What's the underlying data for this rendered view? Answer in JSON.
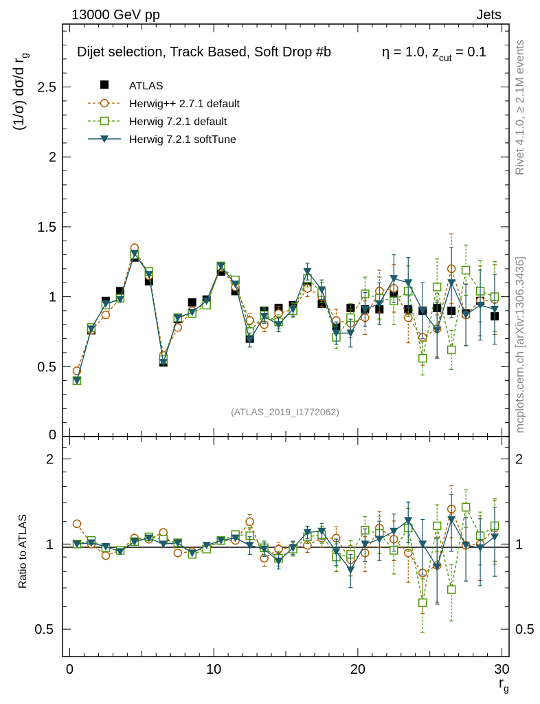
{
  "header": {
    "left_label": "13000 GeV pp",
    "right_label": "Jets"
  },
  "side_labels": {
    "rivet": "Rivet 4.1.0, ≥ 2.1M events",
    "mcplots": "mcplots.cern.ch [arXiv:1306.3436]"
  },
  "chart_data": {
    "type": "line",
    "title": "Dijet selection, Track Based, Soft Drop #b",
    "title_tail": "η = 1.0, z",
    "title_sub": "cut",
    "title_end": " = 0.1",
    "ylabel_main": "(1/σ) dσ/d r",
    "ylabel_main_sub": "g",
    "ylabel_ratio": "Ratio to ATLAS",
    "xlabel": "r",
    "xlabel_sub": "g",
    "watermark": "(ATLAS_2019_I1772062)",
    "xlim": [
      -0.5,
      30.5
    ],
    "ylim_main": [
      0,
      2.95
    ],
    "ylim_ratio": [
      0.4,
      2.4
    ],
    "x_ticks": [
      0,
      10,
      20,
      30
    ],
    "y_ticks_main": [
      0.5,
      1,
      1.5,
      2,
      2.5
    ],
    "y_ticks_ratio": [
      0.5,
      1,
      2
    ],
    "x": [
      0.5,
      1.5,
      2.5,
      3.5,
      4.5,
      5.5,
      6.5,
      7.5,
      8.5,
      9.5,
      10.5,
      11.5,
      12.5,
      13.5,
      14.5,
      15.5,
      16.5,
      17.5,
      18.5,
      19.5,
      20.5,
      21.5,
      22.5,
      23.5,
      24.5,
      25.5,
      26.5,
      27.5,
      28.5,
      29.5
    ],
    "data": {
      "name": "ATLAS",
      "values": [
        0.4,
        0.76,
        0.97,
        1.04,
        1.28,
        1.11,
        0.53,
        0.84,
        0.96,
        0.98,
        1.18,
        1.04,
        0.7,
        0.9,
        0.92,
        0.94,
        1.07,
        0.95,
        0.79,
        0.92,
        0.91,
        0.91,
        1.02,
        0.91,
        0.9,
        0.92,
        0.9,
        0.88,
        0.97,
        0.86
      ]
    },
    "series": [
      {
        "name": "Herwig++ 2.7.1 default",
        "color": "#b35c00",
        "marker": "circle-open",
        "values": [
          0.47,
          0.76,
          0.87,
          0.99,
          1.35,
          1.15,
          0.58,
          0.78,
          0.9,
          0.95,
          1.21,
          1.07,
          0.83,
          0.8,
          0.88,
          0.91,
          1.06,
          1.0,
          0.83,
          0.81,
          0.85,
          1.04,
          1.06,
          0.85,
          0.71,
          0.77,
          1.2,
          0.87,
          0.97,
          0.98
        ],
        "errors": [
          0.01,
          0.01,
          0.01,
          0.01,
          0.02,
          0.02,
          0.01,
          0.01,
          0.02,
          0.02,
          0.02,
          0.02,
          0.05,
          0.05,
          0.05,
          0.05,
          0.06,
          0.07,
          0.08,
          0.1,
          0.12,
          0.15,
          0.17,
          0.18,
          0.2,
          0.2,
          0.25,
          0.22,
          0.25,
          0.25
        ],
        "ratio": [
          1.18,
          1.0,
          0.91,
          0.95,
          1.05,
          1.04,
          1.1,
          0.93,
          0.94,
          0.97,
          1.03,
          1.03,
          1.2,
          0.89,
          0.96,
          0.97,
          0.99,
          1.05,
          1.05,
          0.88,
          0.93,
          1.14,
          1.04,
          0.93,
          0.79,
          0.84,
          1.33,
          0.99,
          1.0,
          1.14
        ]
      },
      {
        "name": "Herwig 7.2.1 default",
        "color": "#4a9a06",
        "marker": "square-open",
        "values": [
          0.4,
          0.78,
          0.94,
          0.99,
          1.3,
          1.18,
          0.55,
          0.85,
          0.88,
          0.94,
          1.22,
          1.12,
          0.75,
          0.87,
          0.82,
          0.9,
          1.13,
          1.03,
          0.71,
          0.85,
          1.02,
          0.99,
          0.97,
          1.04,
          0.56,
          1.07,
          0.62,
          1.19,
          1.04,
          1.0
        ],
        "errors": [
          0.01,
          0.01,
          0.01,
          0.01,
          0.02,
          0.02,
          0.01,
          0.01,
          0.02,
          0.02,
          0.02,
          0.02,
          0.05,
          0.05,
          0.05,
          0.05,
          0.06,
          0.07,
          0.08,
          0.1,
          0.12,
          0.15,
          0.17,
          0.18,
          0.12,
          0.2,
          0.14,
          0.18,
          0.22,
          0.25
        ],
        "ratio": [
          1.0,
          1.03,
          0.97,
          0.95,
          1.02,
          1.06,
          1.04,
          1.01,
          0.92,
          0.96,
          1.03,
          1.08,
          1.07,
          0.97,
          0.89,
          0.96,
          1.06,
          1.08,
          0.9,
          0.92,
          1.12,
          1.09,
          0.95,
          1.14,
          0.62,
          1.16,
          0.69,
          1.35,
          1.07,
          1.16
        ]
      },
      {
        "name": "Herwig 7.2.1 softTune",
        "color": "#1d5a6c",
        "marker": "triangle-down",
        "values": [
          0.4,
          0.77,
          0.95,
          0.98,
          1.31,
          1.16,
          0.53,
          0.85,
          0.89,
          0.97,
          1.22,
          1.09,
          0.69,
          0.86,
          0.8,
          0.91,
          1.18,
          1.05,
          0.74,
          0.74,
          0.91,
          0.95,
          1.13,
          1.1,
          0.9,
          0.76,
          1.1,
          0.87,
          0.94,
          0.91
        ],
        "errors": [
          0.01,
          0.01,
          0.01,
          0.01,
          0.02,
          0.02,
          0.01,
          0.01,
          0.02,
          0.02,
          0.02,
          0.02,
          0.05,
          0.05,
          0.05,
          0.05,
          0.06,
          0.07,
          0.08,
          0.1,
          0.12,
          0.15,
          0.17,
          0.18,
          0.2,
          0.2,
          0.25,
          0.22,
          0.25,
          0.25
        ],
        "ratio": [
          1.0,
          1.01,
          0.98,
          0.94,
          1.02,
          1.05,
          1.0,
          1.01,
          0.93,
          0.99,
          1.03,
          1.05,
          0.99,
          0.96,
          0.87,
          0.97,
          1.1,
          1.11,
          0.94,
          0.81,
          1.0,
          1.04,
          1.11,
          1.21,
          1.0,
          0.83,
          1.22,
          0.99,
          0.97,
          1.06
        ]
      }
    ]
  }
}
